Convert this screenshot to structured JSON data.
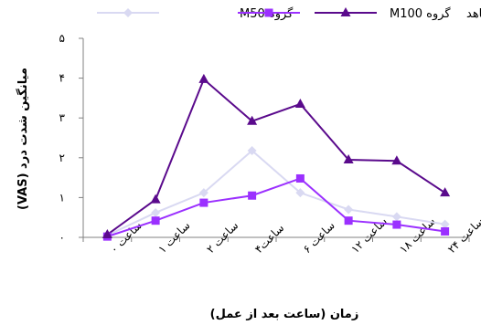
{
  "chart_data": {
    "type": "line",
    "categories": [
      "ساعت ۰",
      "ساعت ۱",
      "ساعت ۲",
      "ساعت۴",
      "ساعت ۶",
      "ساعت ۱۲",
      "ساعت ۱۸",
      "ساعت ۲۴"
    ],
    "series": [
      {
        "name": "گروه M50",
        "color": "#d9d9f2",
        "marker": "diamond",
        "values": [
          0.05,
          0.62,
          1.12,
          2.18,
          1.12,
          0.7,
          0.52,
          0.33
        ]
      },
      {
        "name": "گروه M100",
        "color": "#9b30ff",
        "marker": "square",
        "values": [
          0.02,
          0.42,
          0.87,
          1.05,
          1.48,
          0.42,
          0.32,
          0.15
        ]
      },
      {
        "name": "گروه شاهد",
        "color": "#5a0a8c",
        "marker": "triangle",
        "values": [
          0.07,
          0.95,
          3.97,
          2.92,
          3.35,
          1.95,
          1.92,
          1.12
        ]
      }
    ],
    "yticks": [
      "۰",
      "۱",
      "۲",
      "۳",
      "۴",
      "۵"
    ],
    "ylim": [
      0,
      5
    ],
    "xlabel": "زمان (ساعت بعد از عمل)",
    "ylabel": "میانگین شدت درد (VAS)",
    "grid": false,
    "legend_position": "top"
  }
}
